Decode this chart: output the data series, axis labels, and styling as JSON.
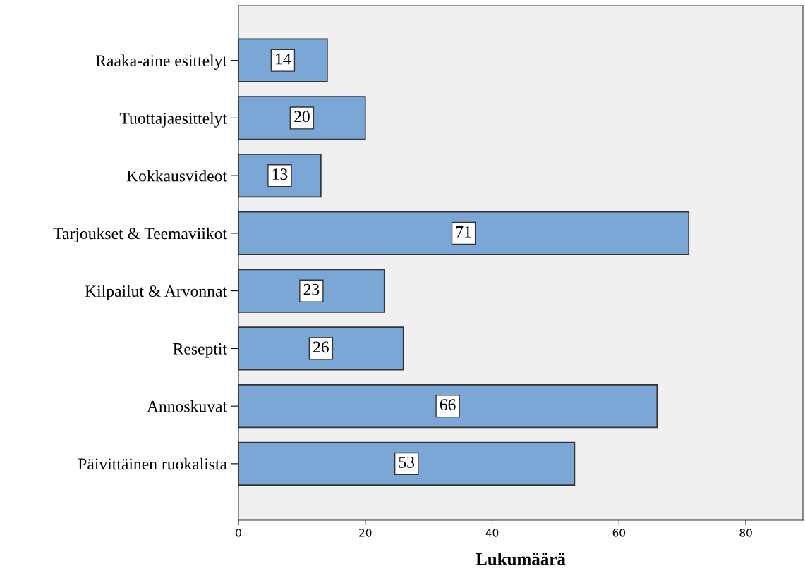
{
  "chart_data": {
    "type": "bar",
    "orientation": "horizontal",
    "categories": [
      "Raaka-aine esittelyt",
      "Tuottajaesittelyt",
      "Kokkausvideot",
      "Tarjoukset & Teemaviikot",
      "Kilpailut & Arvonnat",
      "Reseptit",
      "Annoskuvat",
      "Päivittäinen ruokalista"
    ],
    "values": [
      14,
      20,
      13,
      71,
      23,
      26,
      66,
      53
    ],
    "color": "#7ba7d6",
    "xlim": [
      0,
      89
    ],
    "xticks": [
      0,
      20,
      40,
      60,
      80
    ],
    "xlabel": "Lukumäärä",
    "data_labels": true,
    "grid": false,
    "legend": false
  }
}
